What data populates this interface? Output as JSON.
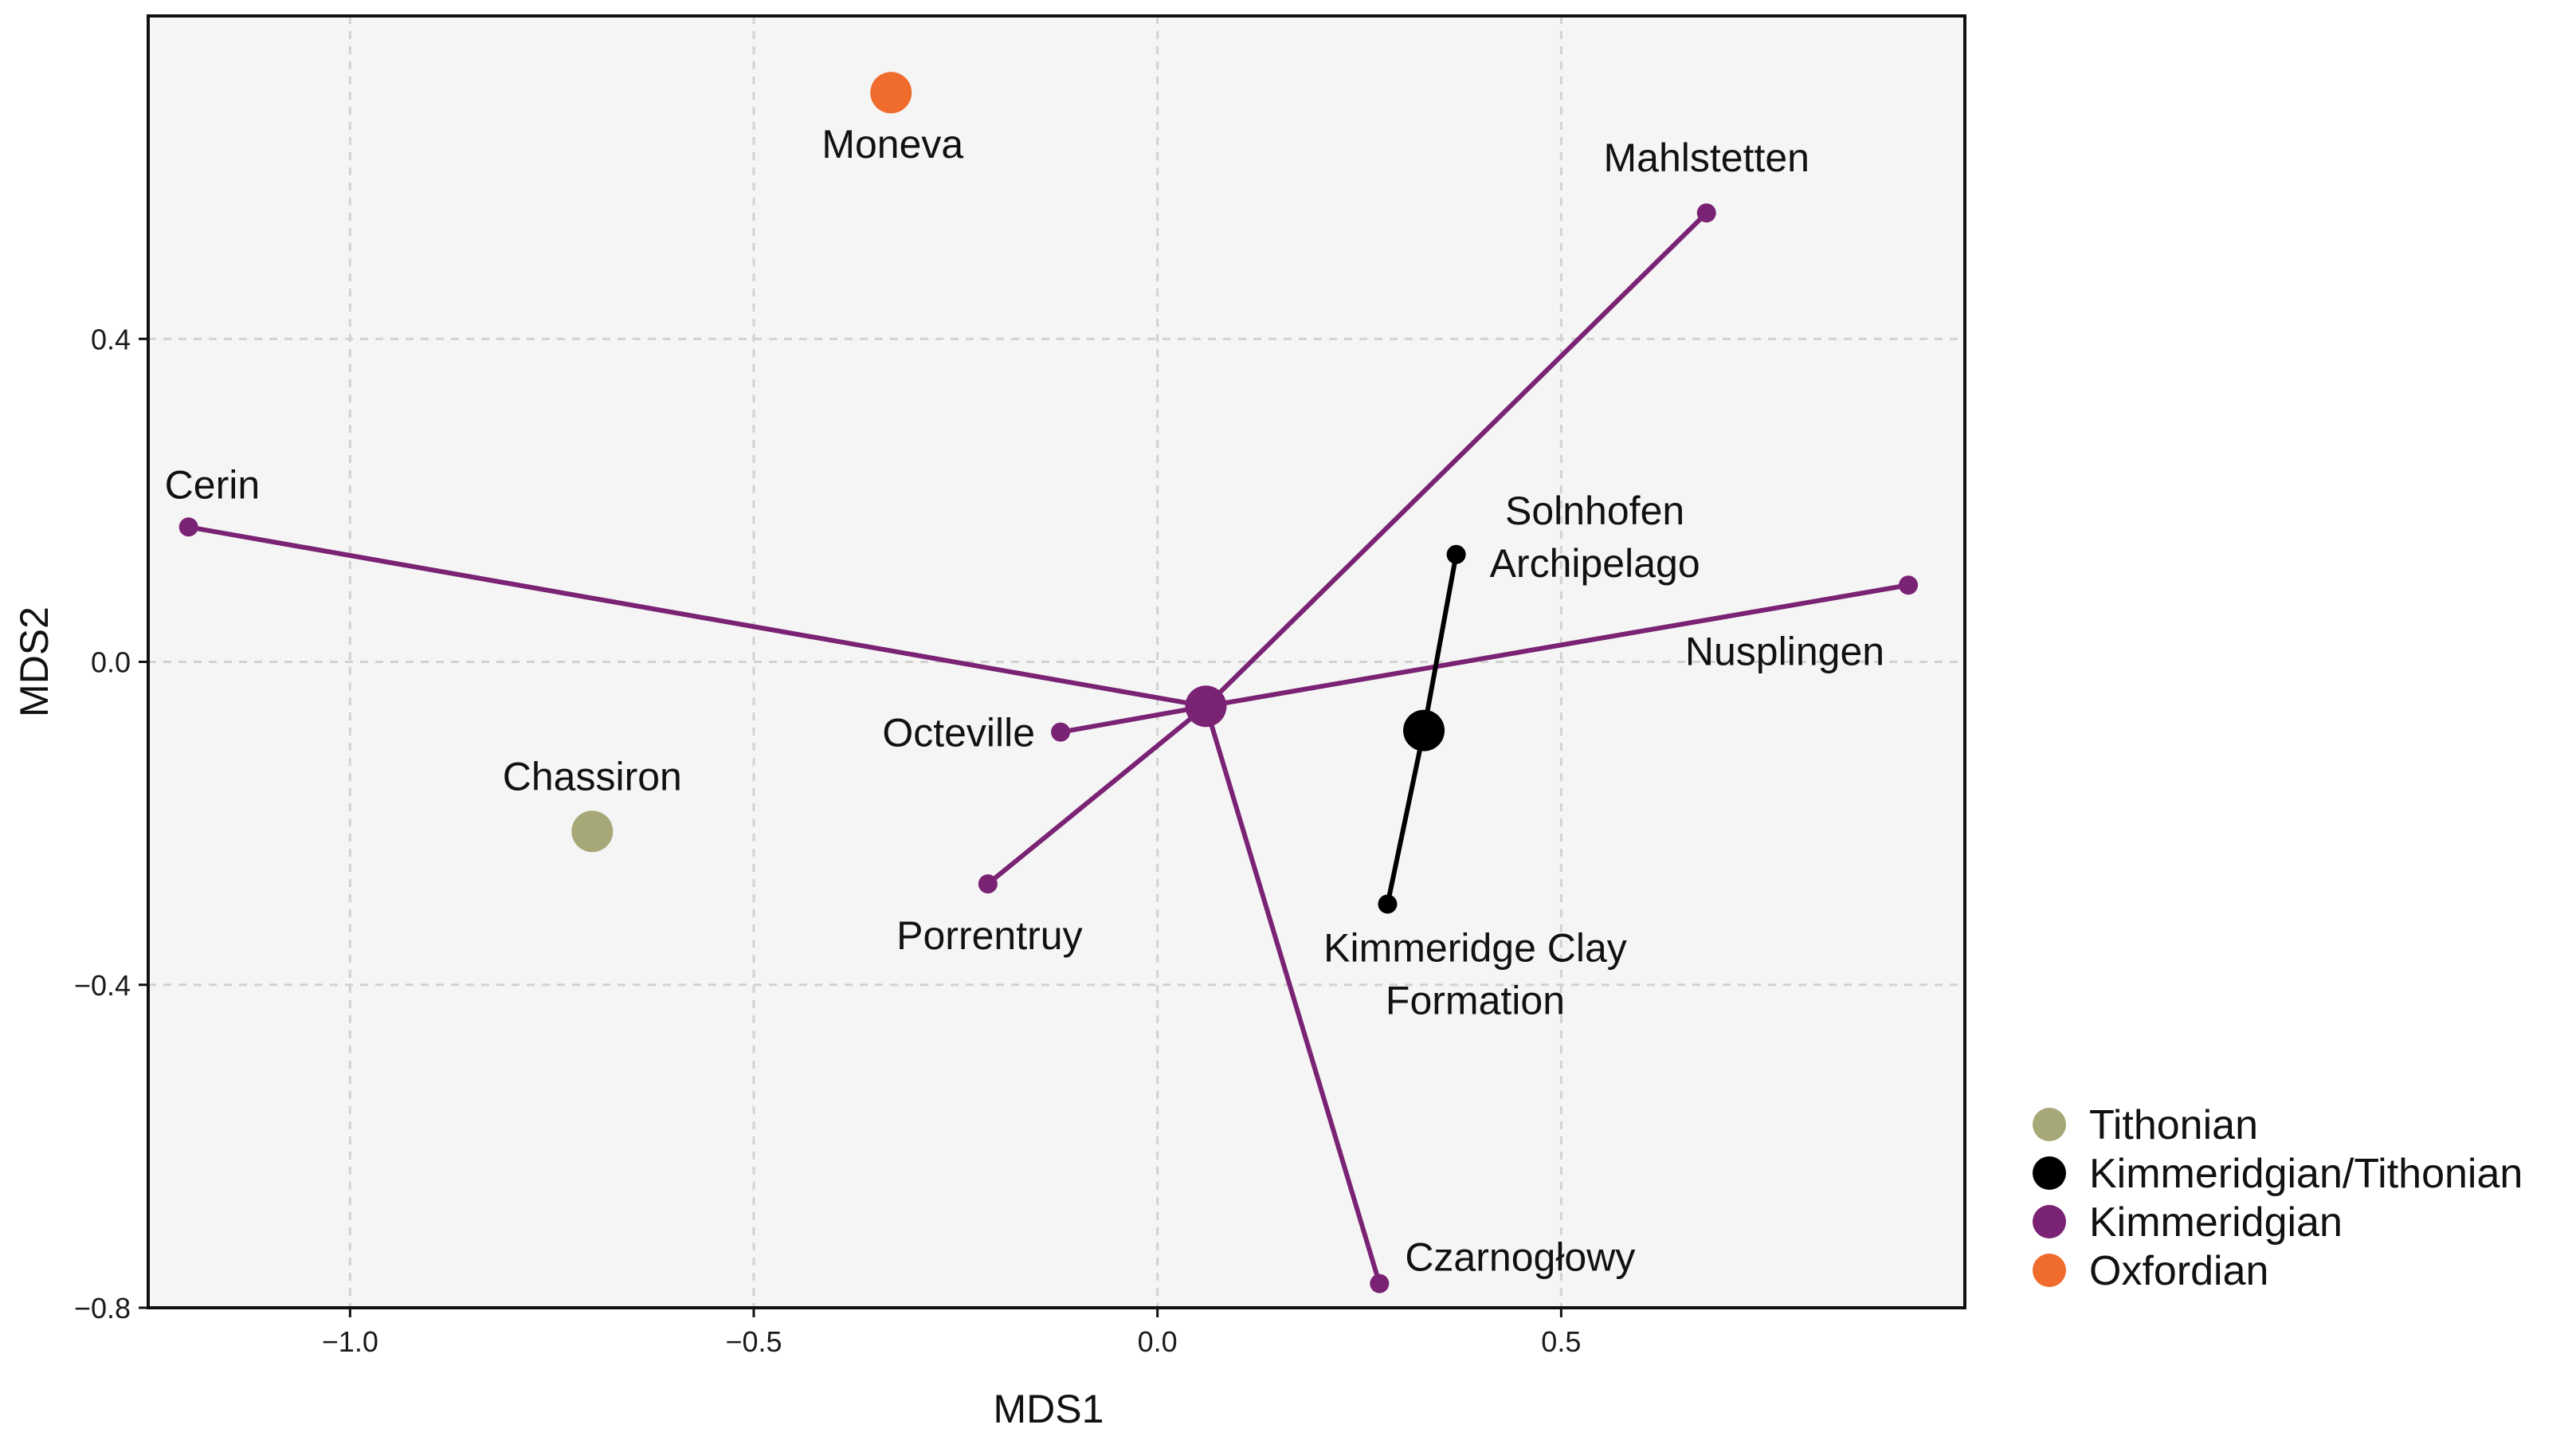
{
  "chart_data": {
    "type": "scatter",
    "title": "",
    "xlabel": "MDS1",
    "ylabel": "MDS2",
    "xlim": [
      -1.25,
      1.0
    ],
    "ylim": [
      -0.8,
      0.8
    ],
    "xticks": [
      -1.0,
      -0.5,
      0.0,
      0.5
    ],
    "yticks": [
      -0.8,
      -0.4,
      0.0,
      0.4
    ],
    "xtick_labels": [
      "−1.0",
      "−0.5",
      "0.0",
      "0.5"
    ],
    "ytick_labels": [
      "−0.8",
      "−0.4",
      "0.0",
      "0.4"
    ],
    "grid": true,
    "background": "#f5f5f5",
    "legend_position": "right",
    "legend": [
      {
        "name": "Tithonian",
        "color": "#a7a877"
      },
      {
        "name": "Kimmeridgian/Tithonian",
        "color": "#000000"
      },
      {
        "name": "Kimmeridgian",
        "color": "#7a2273"
      },
      {
        "name": "Oxfordian",
        "color": "#ef6c2c"
      }
    ],
    "centroids": [
      {
        "group": "Kimmeridgian",
        "x": 0.06,
        "y": -0.055,
        "color": "#7a2273"
      },
      {
        "group": "Kimmeridgian/Tithonian",
        "x": 0.33,
        "y": -0.085,
        "color": "#000000"
      }
    ],
    "points": [
      {
        "label": "Moneva",
        "group": "Oxfordian",
        "x": -0.33,
        "y": 0.705,
        "color": "#ef6c2c",
        "size": "large",
        "label_pos": "below",
        "centroid": null
      },
      {
        "label": "Chassiron",
        "group": "Tithonian",
        "x": -0.7,
        "y": -0.21,
        "color": "#a7a877",
        "size": "large",
        "label_pos": "above",
        "centroid": null
      },
      {
        "label": "Cerin",
        "group": "Kimmeridgian",
        "x": -1.2,
        "y": 0.167,
        "color": "#7a2273",
        "size": "small",
        "label_pos": "above-right",
        "centroid": 0
      },
      {
        "label": "Mahlstetten",
        "group": "Kimmeridgian",
        "x": 0.68,
        "y": 0.556,
        "color": "#7a2273",
        "size": "small",
        "label_pos": "above",
        "centroid": 0
      },
      {
        "label": "Nusplingen",
        "group": "Kimmeridgian",
        "x": 0.93,
        "y": 0.095,
        "color": "#7a2273",
        "size": "small",
        "label_pos": "below-left",
        "centroid": 0
      },
      {
        "label": "Octeville",
        "group": "Kimmeridgian",
        "x": -0.12,
        "y": -0.087,
        "color": "#7a2273",
        "size": "small",
        "label_pos": "left",
        "centroid": 0
      },
      {
        "label": "Porrentruy",
        "group": "Kimmeridgian",
        "x": -0.21,
        "y": -0.275,
        "color": "#7a2273",
        "size": "small",
        "label_pos": "below",
        "centroid": 0
      },
      {
        "label": "Czarnogłowy",
        "group": "Kimmeridgian",
        "x": 0.275,
        "y": -0.77,
        "color": "#7a2273",
        "size": "small",
        "label_pos": "right",
        "centroid": 0
      },
      {
        "label": "Solnhofen\nArchipelago",
        "group": "Kimmeridgian/Tithonian",
        "x": 0.37,
        "y": 0.133,
        "color": "#000000",
        "size": "small",
        "label_pos": "right-multiline",
        "centroid": 1
      },
      {
        "label": "Kimmeridge Clay\nFormation",
        "group": "Kimmeridgian/Tithonian",
        "x": 0.285,
        "y": -0.3,
        "color": "#000000",
        "size": "small",
        "label_pos": "below-multiline",
        "centroid": 1
      }
    ]
  }
}
